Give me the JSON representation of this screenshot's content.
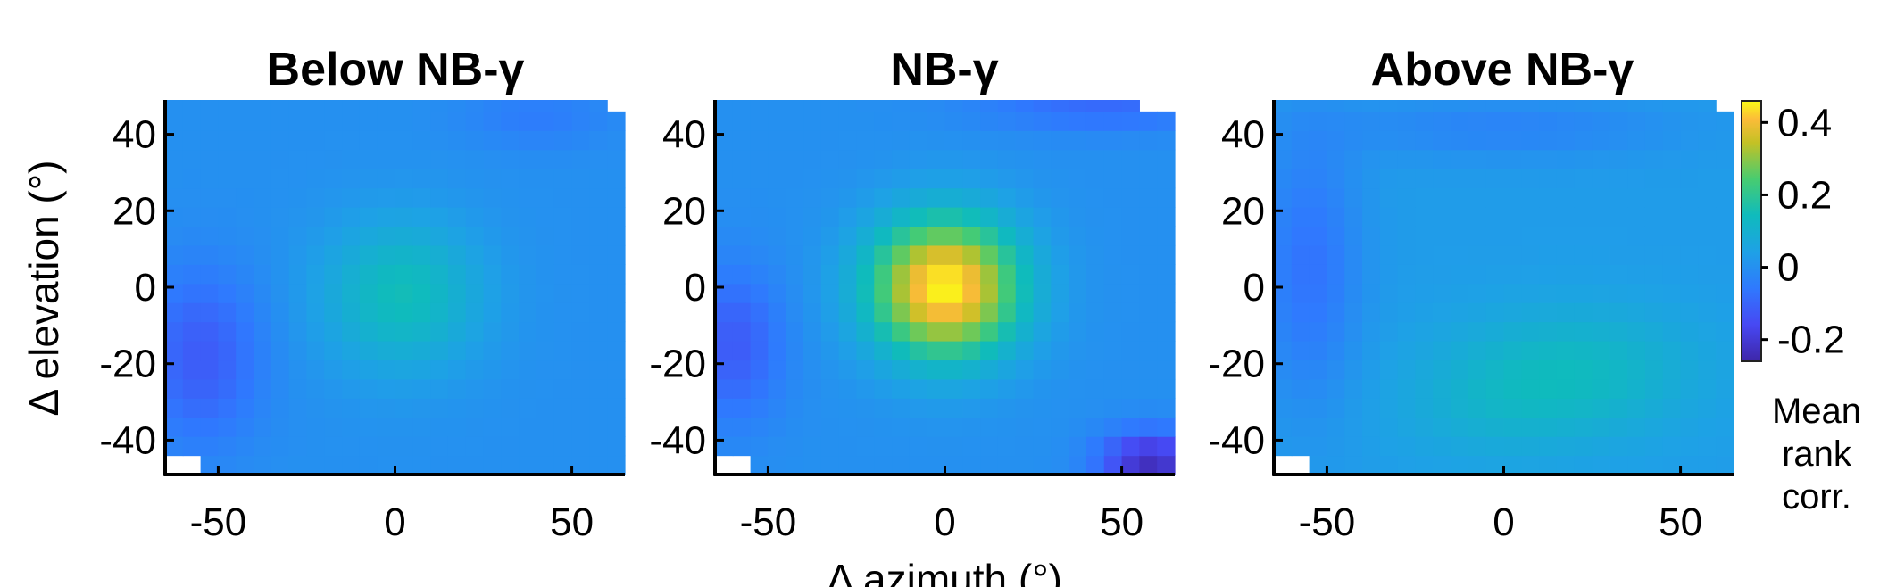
{
  "chart_data": {
    "type": "heatmap",
    "shared": {
      "xlabel": "Δ azimuth (°)",
      "ylabel": "Δ elevation (°)",
      "xlim": [
        -65,
        65
      ],
      "ylim": [
        -49,
        49
      ],
      "xticks": [
        -50,
        0,
        50
      ],
      "yticks": [
        40,
        20,
        0,
        -20,
        -40
      ],
      "colormap": "parula",
      "colorbar": {
        "label": [
          "Mean",
          "rank",
          "corr."
        ],
        "ticks": [
          0.4,
          0.2,
          0,
          -0.2
        ],
        "range": [
          -0.26,
          0.46
        ]
      }
    },
    "panels": [
      {
        "title": "Below NB-γ",
        "peak_center": [
          2,
          -2
        ],
        "peak_value": 0.15,
        "baseline": 0.0,
        "pattern": "weak central peak, slightly negative lower-left"
      },
      {
        "title": "NB-γ",
        "peak_center": [
          0,
          0
        ],
        "peak_value": 0.45,
        "baseline": 0.0,
        "pattern": "strong central peak, negative lower-right corner"
      },
      {
        "title": "Above NB-γ",
        "peak_center": [
          20,
          -22
        ],
        "peak_value": 0.12,
        "baseline": 0.03,
        "pattern": "diffuse, slight positive band lower-center"
      }
    ]
  }
}
